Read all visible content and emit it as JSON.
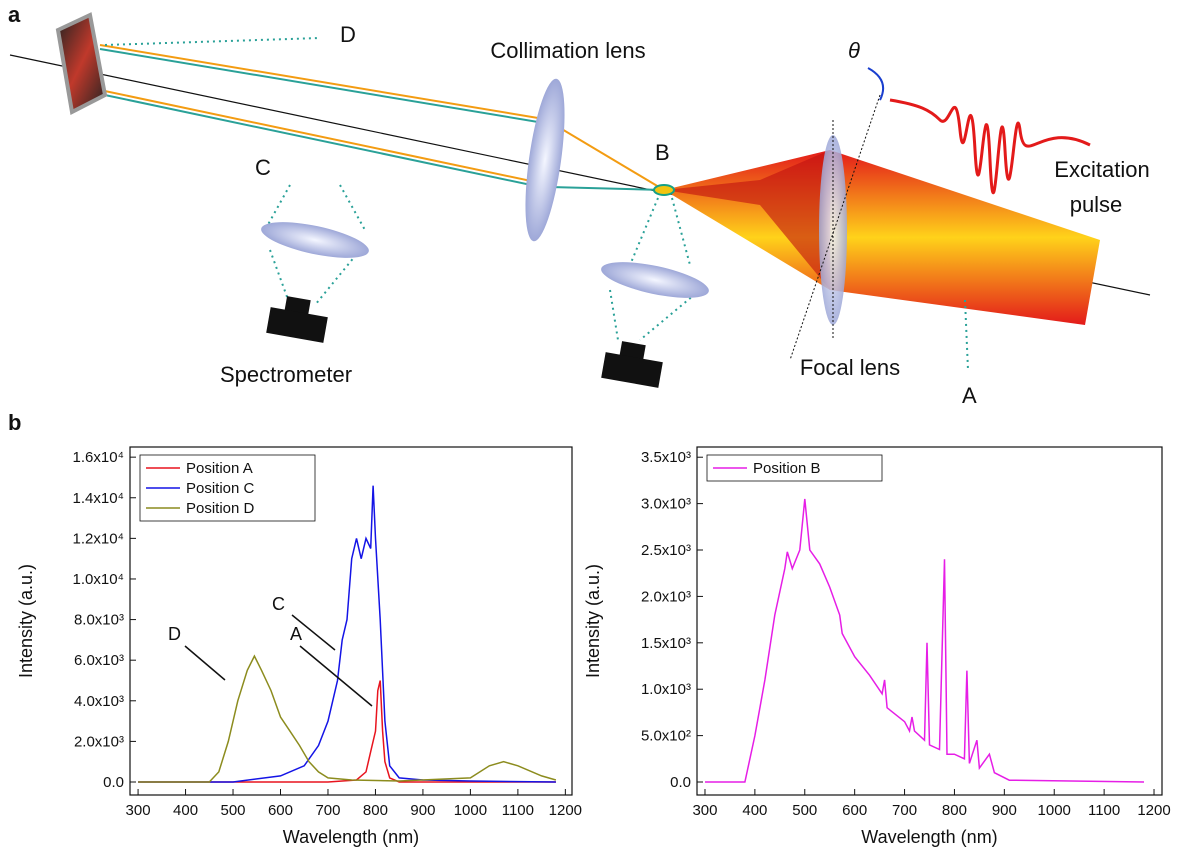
{
  "panels": [
    "a",
    "b"
  ],
  "diagram": {
    "labels": {
      "d": "D",
      "collimation_lens": "Collimation lens",
      "theta": "θ",
      "b": "B",
      "c": "C",
      "excitation": "Excitation",
      "pulse": "pulse",
      "spectrometer": "Spectrometer",
      "focal_lens": "Focal lens",
      "a": "A"
    }
  },
  "chart_data": [
    {
      "type": "line",
      "xlabel": "Wavelength (nm)",
      "ylabel": "Intensity (a.u.)",
      "xlim": [
        283,
        1214
      ],
      "ylim": [
        -640,
        16500
      ],
      "xticks": [
        300,
        400,
        500,
        600,
        700,
        800,
        900,
        1000,
        1100,
        1200
      ],
      "yticks": [
        {
          "value": 0,
          "label": "0.0"
        },
        {
          "value": 2000,
          "label": "2.0x10³"
        },
        {
          "value": 4000,
          "label": "4.0x10³"
        },
        {
          "value": 6000,
          "label": "6.0x10³"
        },
        {
          "value": 8000,
          "label": "8.0x10³"
        },
        {
          "value": 10000,
          "label": "1.0x10⁴"
        },
        {
          "value": 12000,
          "label": "1.2x10⁴"
        },
        {
          "value": 14000,
          "label": "1.4x10⁴"
        },
        {
          "value": 16000,
          "label": "1.6x10⁴"
        }
      ],
      "legend": "upper left",
      "annotations": [
        "D",
        "C",
        "A"
      ],
      "series": [
        {
          "name": "Position A",
          "color": "#e8141e",
          "x": [
            300,
            700,
            760,
            780,
            790,
            800,
            805,
            810,
            815,
            820,
            830,
            850,
            1180
          ],
          "values": [
            0,
            0,
            100,
            500,
            1500,
            2500,
            4500,
            5000,
            2500,
            1000,
            200,
            0,
            0
          ]
        },
        {
          "name": "Position C",
          "color": "#1414e6",
          "x": [
            300,
            500,
            600,
            650,
            680,
            700,
            720,
            730,
            740,
            750,
            760,
            770,
            780,
            790,
            795,
            800,
            810,
            820,
            830,
            850,
            900,
            1000,
            1180
          ],
          "values": [
            0,
            0,
            300,
            800,
            1800,
            3000,
            5000,
            7000,
            8000,
            11000,
            12000,
            11000,
            12000,
            11500,
            14600,
            12000,
            8000,
            3000,
            800,
            200,
            100,
            50,
            0
          ]
        },
        {
          "name": "Position D",
          "color": "#8c8c1e",
          "x": [
            300,
            450,
            470,
            490,
            510,
            530,
            545,
            560,
            580,
            600,
            620,
            640,
            660,
            680,
            700,
            750,
            850,
            1000,
            1040,
            1070,
            1100,
            1150,
            1180
          ],
          "values": [
            0,
            0,
            500,
            2000,
            4000,
            5500,
            6200,
            5500,
            4500,
            3200,
            2500,
            1800,
            1000,
            500,
            200,
            100,
            50,
            200,
            800,
            1000,
            800,
            300,
            100
          ]
        }
      ]
    },
    {
      "type": "line",
      "xlabel": "Wavelength (nm)",
      "ylabel": "Intensity (a.u.)",
      "xlim": [
        284,
        1216
      ],
      "ylim": [
        -140,
        3610
      ],
      "xticks": [
        300,
        400,
        500,
        600,
        700,
        800,
        900,
        1000,
        1100,
        1200
      ],
      "yticks": [
        {
          "value": 0,
          "label": "0.0"
        },
        {
          "value": 500,
          "label": "5.0x10²"
        },
        {
          "value": 1000,
          "label": "1.0x10³"
        },
        {
          "value": 1500,
          "label": "1.5x10³"
        },
        {
          "value": 2000,
          "label": "2.0x10³"
        },
        {
          "value": 2500,
          "label": "2.5x10³"
        },
        {
          "value": 3000,
          "label": "3.0x10³"
        },
        {
          "value": 3500,
          "label": "3.5x10³"
        }
      ],
      "legend": "upper left",
      "series": [
        {
          "name": "Position B",
          "color": "#e61ee6",
          "x": [
            300,
            380,
            400,
            420,
            440,
            460,
            465,
            475,
            490,
            500,
            510,
            530,
            550,
            570,
            575,
            600,
            630,
            655,
            660,
            665,
            700,
            710,
            715,
            720,
            740,
            745,
            750,
            770,
            780,
            785,
            800,
            820,
            825,
            830,
            845,
            850,
            870,
            880,
            910,
            1180
          ],
          "values": [
            0,
            0,
            500,
            1100,
            1800,
            2300,
            2480,
            2300,
            2500,
            3050,
            2500,
            2350,
            2100,
            1800,
            1600,
            1350,
            1150,
            950,
            1100,
            800,
            650,
            550,
            700,
            550,
            450,
            1500,
            400,
            350,
            2400,
            300,
            300,
            250,
            1200,
            200,
            450,
            150,
            300,
            100,
            20,
            0
          ]
        }
      ]
    }
  ]
}
